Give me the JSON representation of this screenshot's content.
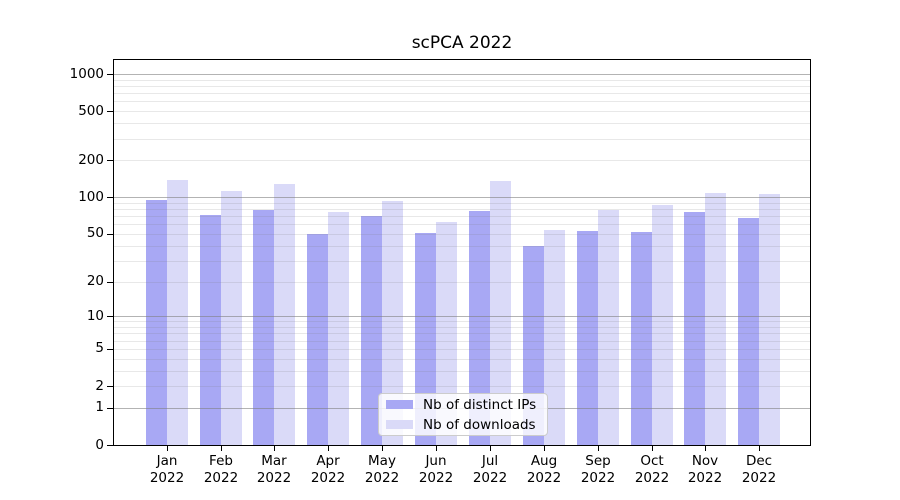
{
  "title": "scPCA 2022",
  "chart_data": {
    "type": "bar",
    "title": "scPCA 2022",
    "year": "2022",
    "categories": [
      "Jan",
      "Feb",
      "Mar",
      "Apr",
      "May",
      "Jun",
      "Jul",
      "Aug",
      "Sep",
      "Oct",
      "Nov",
      "Dec"
    ],
    "series": [
      {
        "name": "Nb of distinct IPs",
        "color": "#a8a8f4",
        "values": [
          95,
          71,
          78,
          50,
          70,
          51,
          77,
          40,
          53,
          52,
          75,
          67
        ]
      },
      {
        "name": "Nb of downloads",
        "color": "#dadaf8",
        "values": [
          137,
          112,
          128,
          75,
          93,
          63,
          135,
          54,
          79,
          86,
          109,
          106
        ]
      }
    ],
    "yscale": "log1p",
    "ylim": [
      0,
      1300
    ],
    "yticks": [
      1000,
      500,
      200,
      100,
      50,
      20,
      10,
      5,
      2,
      1,
      0
    ],
    "grid": {
      "major": [
        1,
        10,
        100,
        1000
      ],
      "minor": [
        2,
        3,
        4,
        5,
        6,
        7,
        8,
        9,
        20,
        30,
        40,
        50,
        60,
        70,
        80,
        90,
        200,
        300,
        400,
        500,
        600,
        700,
        800,
        900
      ]
    },
    "grid_on": true,
    "legend_position": "lower center"
  },
  "colors": {
    "bar_distinct_ips": "#a8a8f4",
    "bar_downloads": "#dadaf8",
    "grid_major": "rgba(128,128,128,0.60)",
    "grid_minor": "rgba(128,128,128,0.18)",
    "spine": "#000000",
    "legend_border": "#cccccc",
    "legend_bg": "rgba(255,255,255,0.82)",
    "text": "#000000"
  }
}
